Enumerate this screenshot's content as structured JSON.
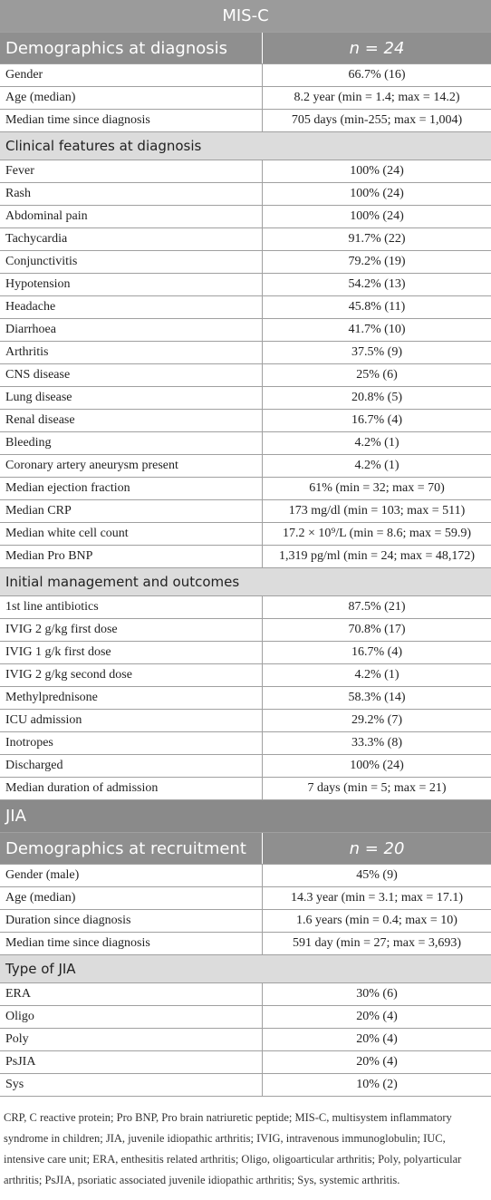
{
  "sections": [
    {
      "title": "MIS-C",
      "header": [
        "Demographics at diagnosis",
        "n = 24"
      ],
      "rows": [
        [
          "Gender",
          "66.7% (16)"
        ],
        [
          "Age (median)",
          "8.2 year (min = 1.4; max = 14.2)"
        ],
        [
          "Median time since diagnosis",
          "705 days (min-255; max = 1,004)"
        ]
      ],
      "groups": [
        {
          "title": "Clinical features at diagnosis",
          "rows": [
            [
              "Fever",
              "100% (24)"
            ],
            [
              "Rash",
              "100% (24)"
            ],
            [
              "Abdominal pain",
              "100% (24)"
            ],
            [
              "Tachycardia",
              "91.7% (22)"
            ],
            [
              "Conjunctivitis",
              "79.2% (19)"
            ],
            [
              "Hypotension",
              "54.2% (13)"
            ],
            [
              "Headache",
              "45.8% (11)"
            ],
            [
              "Diarrhoea",
              "41.7% (10)"
            ],
            [
              "Arthritis",
              "37.5% (9)"
            ],
            [
              "CNS disease",
              "25% (6)"
            ],
            [
              "Lung disease",
              "20.8% (5)"
            ],
            [
              "Renal disease",
              "16.7% (4)"
            ],
            [
              "Bleeding",
              "4.2% (1)"
            ],
            [
              "Coronary artery aneurysm present",
              "4.2% (1)"
            ],
            [
              "Median ejection fraction",
              "61% (min = 32; max = 70)"
            ],
            [
              "Median CRP",
              "173 mg/dl (min = 103; max = 511)"
            ],
            [
              "Median white cell count",
              "17.2 × 10⁹/L (min = 8.6; max = 59.9)"
            ],
            [
              "Median Pro BNP",
              "1,319 pg/ml (min = 24; max = 48,172)"
            ]
          ]
        },
        {
          "title": "Initial management and outcomes",
          "rows": [
            [
              "1st line antibiotics",
              "87.5% (21)"
            ],
            [
              "IVIG 2 g/kg first dose",
              "70.8% (17)"
            ],
            [
              "IVIG 1 g/k first dose",
              "16.7% (4)"
            ],
            [
              "IVIG 2 g/kg second dose",
              "4.2% (1)"
            ],
            [
              "Methylprednisone",
              "58.3% (14)"
            ],
            [
              "ICU admission",
              "29.2% (7)"
            ],
            [
              "Inotropes",
              "33.3% (8)"
            ],
            [
              "Discharged",
              "100% (24)"
            ],
            [
              "Median duration of admission",
              "7 days (min = 5; max = 21)"
            ]
          ]
        }
      ]
    },
    {
      "title": "JIA",
      "header": [
        "Demographics at recruitment",
        "n = 20"
      ],
      "rows": [
        [
          "Gender (male)",
          "45% (9)"
        ],
        [
          "Age (median)",
          "14.3 year (min = 3.1; max = 17.1)"
        ],
        [
          "Duration since diagnosis",
          "1.6 years (min = 0.4; max = 10)"
        ],
        [
          "Median time since diagnosis",
          "591 day (min = 27; max = 3,693)"
        ]
      ],
      "groups": [
        {
          "title": "Type of JIA",
          "rows": [
            [
              "ERA",
              "30% (6)"
            ],
            [
              "Oligo",
              "20% (4)"
            ],
            [
              "Poly",
              "20% (4)"
            ],
            [
              "PsJIA",
              "20% (4)"
            ],
            [
              "Sys",
              "10% (2)"
            ]
          ]
        }
      ]
    }
  ],
  "footnote": "CRP, C reactive protein; Pro BNP, Pro brain natriuretic peptide; MIS-C, multisystem inflammatory syndrome in children; JIA, juvenile idiopathic arthritis; IVIG, intravenous immunoglobulin; IUC, intensive care unit; ERA, enthesitis related arthritis; Oligo, oligoarticular arthritis; Poly, polyarticular arthritis; PsJIA, psoriatic associated juvenile idiopathic arthritis; Sys, systemic arthritis."
}
